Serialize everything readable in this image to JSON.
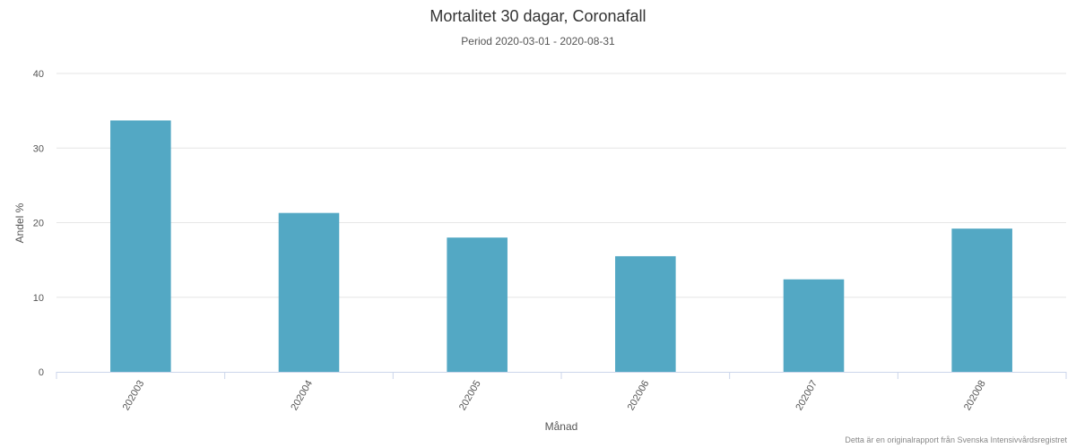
{
  "chart_data": {
    "type": "bar",
    "title": "Mortalitet 30 dagar, Coronafall",
    "subtitle": "Period 2020-03-01 - 2020-08-31",
    "xlabel": "Månad",
    "ylabel": "Andel %",
    "categories": [
      "202003",
      "202004",
      "202005",
      "202006",
      "202007",
      "202008"
    ],
    "values": [
      33.7,
      21.3,
      18.0,
      15.5,
      12.4,
      19.2
    ],
    "ylim": [
      0,
      40
    ],
    "yticks": [
      0,
      10,
      20,
      30,
      40
    ],
    "grid": true,
    "bar_color": "#53a8c4",
    "credit": "Detta är en originalrapport från Svenska Intensivvårdsregistret"
  }
}
